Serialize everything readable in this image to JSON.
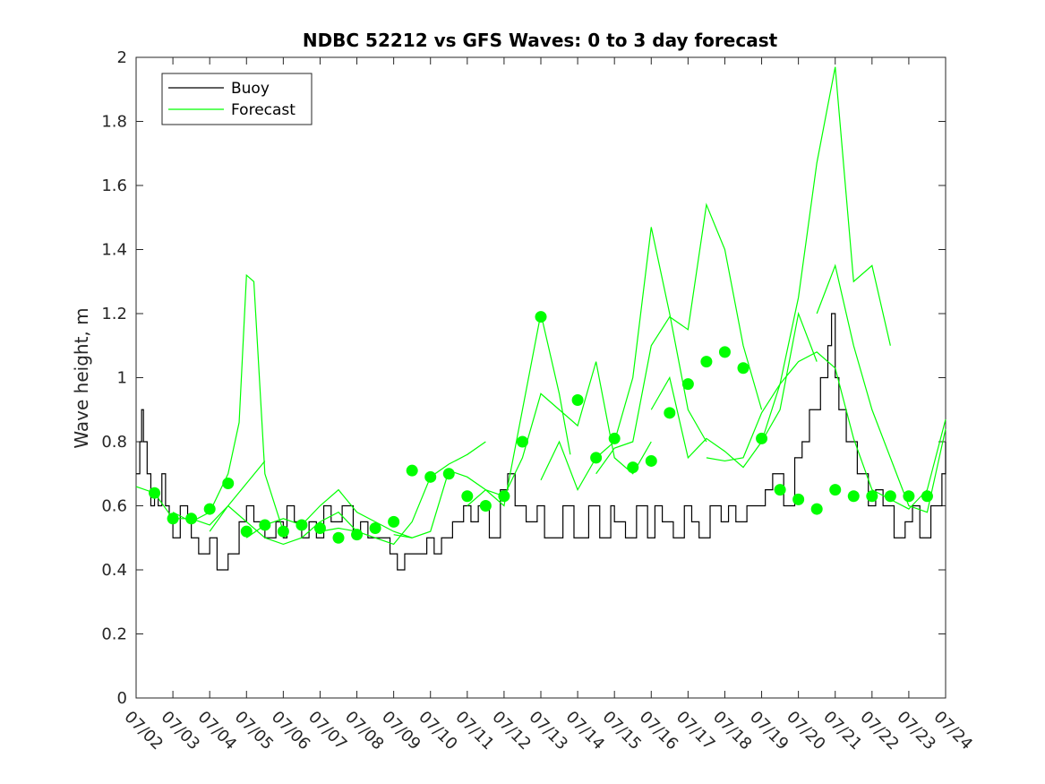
{
  "chart_data": {
    "type": "line",
    "title": "NDBC 52212 vs GFS Waves: 0 to 3 day forecast",
    "ylabel": "Wave height, m",
    "xlabel": "",
    "xlim": [
      "07/02",
      "07/24"
    ],
    "ylim": [
      0,
      2
    ],
    "y_ticks": [
      "0",
      "0.2",
      "0.4",
      "0.6",
      "0.8",
      "1",
      "1.2",
      "1.4",
      "1.6",
      "1.8",
      "2"
    ],
    "x_ticks": [
      "07/02",
      "07/03",
      "07/04",
      "07/05",
      "07/06",
      "07/07",
      "07/08",
      "07/09",
      "07/10",
      "07/11",
      "07/12",
      "07/13",
      "07/14",
      "07/15",
      "07/16",
      "07/17",
      "07/18",
      "07/19",
      "07/20",
      "07/21",
      "07/22",
      "07/23",
      "07/24"
    ],
    "grid": false,
    "legend": {
      "position": "top-left",
      "entries": [
        "Buoy",
        "Forecast"
      ]
    },
    "colors": {
      "buoy": "#000000",
      "forecast": "#00ff00",
      "markers": "#00ff00"
    },
    "series": [
      {
        "name": "Buoy",
        "x": [
          0,
          0.1,
          0.15,
          0.2,
          0.3,
          0.4,
          0.5,
          0.6,
          0.7,
          0.8,
          0.9,
          1.0,
          1.2,
          1.4,
          1.5,
          1.6,
          1.7,
          2.0,
          2.2,
          2.5,
          2.8,
          3.0,
          3.2,
          3.5,
          3.8,
          4.0,
          4.1,
          4.3,
          4.5,
          4.7,
          4.9,
          5.1,
          5.3,
          5.6,
          5.9,
          6.1,
          6.3,
          6.6,
          6.9,
          7.1,
          7.3,
          7.6,
          7.9,
          8.1,
          8.3,
          8.6,
          8.9,
          9.1,
          9.3,
          9.6,
          9.9,
          10.1,
          10.3,
          10.6,
          10.9,
          11.1,
          11.3,
          11.6,
          11.9,
          12.1,
          12.3,
          12.6,
          12.9,
          13.0,
          13.3,
          13.6,
          13.9,
          14.1,
          14.3,
          14.6,
          14.9,
          15.1,
          15.3,
          15.6,
          15.9,
          16.1,
          16.3,
          16.6,
          16.9,
          17.1,
          17.3,
          17.6,
          17.9,
          18.1,
          18.3,
          18.6,
          18.8,
          18.9,
          19.0,
          19.1,
          19.3,
          19.6,
          19.9,
          20.1,
          20.3,
          20.6,
          20.9,
          21.1,
          21.3,
          21.6,
          21.9,
          22.0
        ],
        "values": [
          0.7,
          0.8,
          0.9,
          0.8,
          0.7,
          0.6,
          0.65,
          0.6,
          0.7,
          0.6,
          0.55,
          0.5,
          0.6,
          0.55,
          0.5,
          0.5,
          0.45,
          0.5,
          0.4,
          0.45,
          0.55,
          0.6,
          0.55,
          0.5,
          0.55,
          0.5,
          0.6,
          0.55,
          0.5,
          0.55,
          0.5,
          0.6,
          0.55,
          0.6,
          0.5,
          0.55,
          0.5,
          0.5,
          0.45,
          0.4,
          0.45,
          0.45,
          0.5,
          0.45,
          0.5,
          0.55,
          0.6,
          0.55,
          0.6,
          0.5,
          0.65,
          0.7,
          0.6,
          0.55,
          0.6,
          0.5,
          0.5,
          0.6,
          0.5,
          0.5,
          0.6,
          0.5,
          0.6,
          0.55,
          0.5,
          0.6,
          0.5,
          0.6,
          0.55,
          0.5,
          0.6,
          0.55,
          0.5,
          0.6,
          0.55,
          0.6,
          0.55,
          0.6,
          0.6,
          0.65,
          0.7,
          0.6,
          0.75,
          0.8,
          0.9,
          1.0,
          1.1,
          1.2,
          1.0,
          0.9,
          0.8,
          0.7,
          0.6,
          0.65,
          0.6,
          0.5,
          0.55,
          0.6,
          0.5,
          0.6,
          0.7,
          0.8
        ]
      },
      {
        "name": "Forecast",
        "runs": [
          {
            "x": [
              0,
              0.5,
              1.0,
              1.5,
              2.0,
              2.5,
              3.0,
              3.5
            ],
            "values": [
              0.66,
              0.64,
              0.56,
              0.56,
              0.54,
              0.6,
              0.67,
              0.74
            ]
          },
          {
            "x": [
              1.0,
              1.5,
              2.0,
              2.5,
              2.8,
              3.0,
              3.2,
              3.5,
              4.0
            ],
            "values": [
              0.58,
              0.55,
              0.58,
              0.7,
              0.86,
              1.32,
              1.3,
              0.7,
              0.52
            ]
          },
          {
            "x": [
              2.0,
              2.5,
              3.0,
              3.5,
              4.0,
              4.5,
              5.0,
              5.5,
              6.0
            ],
            "values": [
              0.52,
              0.6,
              0.55,
              0.5,
              0.48,
              0.5,
              0.55,
              0.58,
              0.52
            ]
          },
          {
            "x": [
              3.0,
              3.5,
              4.0,
              4.5,
              5.0,
              5.5,
              6.0,
              6.5,
              7.0,
              7.5
            ],
            "values": [
              0.5,
              0.54,
              0.56,
              0.54,
              0.6,
              0.65,
              0.58,
              0.55,
              0.52,
              0.5
            ]
          },
          {
            "x": [
              5.0,
              5.5,
              6.0,
              6.5,
              7.0,
              7.5,
              8.0,
              8.5,
              9.0,
              9.5
            ],
            "values": [
              0.52,
              0.53,
              0.52,
              0.5,
              0.48,
              0.55,
              0.69,
              0.73,
              0.76,
              0.8
            ]
          },
          {
            "x": [
              7.0,
              7.5,
              8.0,
              8.5,
              9.0,
              9.5,
              10.0,
              10.5,
              11.0,
              11.5,
              11.8
            ],
            "values": [
              0.51,
              0.5,
              0.52,
              0.71,
              0.69,
              0.65,
              0.6,
              0.9,
              1.2,
              0.95,
              0.76
            ]
          },
          {
            "x": [
              9.0,
              9.5,
              10.0,
              10.5,
              11.0,
              11.5,
              12.0,
              12.5,
              13.0,
              13.5,
              14.0
            ],
            "values": [
              0.6,
              0.65,
              0.63,
              0.75,
              0.95,
              0.9,
              0.85,
              1.05,
              0.75,
              0.7,
              0.8
            ]
          },
          {
            "x": [
              11.0,
              11.5,
              12.0,
              12.5,
              13.0,
              13.5,
              14.0,
              14.5,
              15.0,
              15.5
            ],
            "values": [
              0.68,
              0.8,
              0.65,
              0.75,
              0.8,
              1.0,
              1.47,
              1.2,
              0.9,
              0.8
            ]
          },
          {
            "x": [
              12.5,
              13.0,
              13.5,
              14.0,
              14.5,
              15.0,
              15.5,
              16.0,
              16.5,
              17.0
            ],
            "values": [
              0.7,
              0.78,
              0.8,
              1.1,
              1.19,
              1.15,
              1.54,
              1.4,
              1.1,
              0.9
            ]
          },
          {
            "x": [
              14.0,
              14.5,
              15.0,
              15.5,
              16.0,
              16.5,
              17.0,
              17.5,
              18.0,
              18.5
            ],
            "values": [
              0.9,
              1.0,
              0.75,
              0.81,
              0.77,
              0.72,
              0.8,
              0.9,
              1.2,
              1.05
            ]
          },
          {
            "x": [
              15.5,
              16.0,
              16.5,
              17.0,
              17.5,
              18.0,
              18.5,
              19.0,
              19.5,
              20.0,
              20.5
            ],
            "values": [
              0.75,
              0.74,
              0.75,
              0.89,
              0.98,
              1.25,
              1.67,
              1.97,
              1.3,
              1.35,
              1.1
            ]
          },
          {
            "x": [
              17.0,
              17.5,
              18.0,
              18.5,
              19.0,
              19.5,
              20.0,
              20.5,
              21.0,
              21.5,
              22.0
            ],
            "values": [
              0.8,
              0.98,
              1.05,
              1.08,
              1.03,
              0.81,
              0.65,
              0.62,
              0.59,
              0.65,
              0.87
            ]
          },
          {
            "x": [
              18.5,
              19.0,
              19.5,
              20.0,
              20.5,
              21.0,
              21.5,
              22.0
            ],
            "values": [
              1.2,
              1.35,
              1.1,
              0.9,
              0.75,
              0.6,
              0.58,
              0.84
            ]
          }
        ]
      },
      {
        "name": "Forecast markers",
        "x": [
          0.5,
          1.0,
          1.5,
          2.0,
          2.5,
          3.0,
          3.5,
          4.0,
          4.5,
          5.0,
          5.5,
          6.0,
          6.5,
          7.0,
          7.5,
          8.0,
          8.5,
          9.0,
          9.5,
          10.0,
          10.5,
          11.0,
          12.0,
          12.5,
          13.0,
          13.5,
          14.0,
          14.5,
          15.0,
          15.5,
          16.0,
          16.5,
          17.0,
          17.5,
          18.0,
          18.5,
          19.0,
          19.5,
          20.0,
          20.5,
          21.0,
          21.5
        ],
        "values": [
          0.64,
          0.56,
          0.56,
          0.59,
          0.67,
          0.52,
          0.54,
          0.52,
          0.54,
          0.53,
          0.5,
          0.51,
          0.53,
          0.55,
          0.71,
          0.69,
          0.7,
          0.63,
          0.6,
          0.63,
          0.8,
          1.19,
          0.93,
          0.75,
          0.81,
          0.72,
          0.74,
          0.89,
          0.98,
          1.05,
          1.08,
          1.03,
          0.81,
          0.65,
          0.62,
          0.59,
          0.65,
          0.63,
          0.63,
          0.63,
          0.63,
          0.63
        ]
      }
    ]
  }
}
